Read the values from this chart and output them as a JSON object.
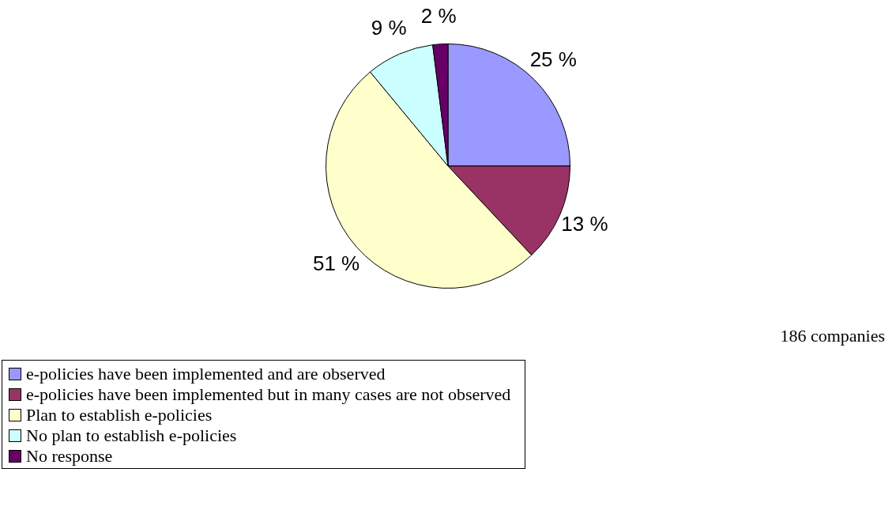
{
  "chart_data": {
    "type": "pie",
    "categories": [
      "e-policies have been implemented and are observed",
      "e-policies have been implemented but in many cases are not observed",
      "Plan to establish e-policies",
      "No plan to establish e-policies",
      "No response"
    ],
    "values": [
      25,
      13,
      51,
      9,
      2
    ],
    "colors": [
      "#9999ff",
      "#993366",
      "#ffffcc",
      "#ccffff",
      "#660066"
    ],
    "value_labels": [
      "25 %",
      "13 %",
      "51 %",
      "9 %",
      "2 %"
    ],
    "annotations": [
      "186 companies"
    ],
    "legend": "bottom"
  }
}
